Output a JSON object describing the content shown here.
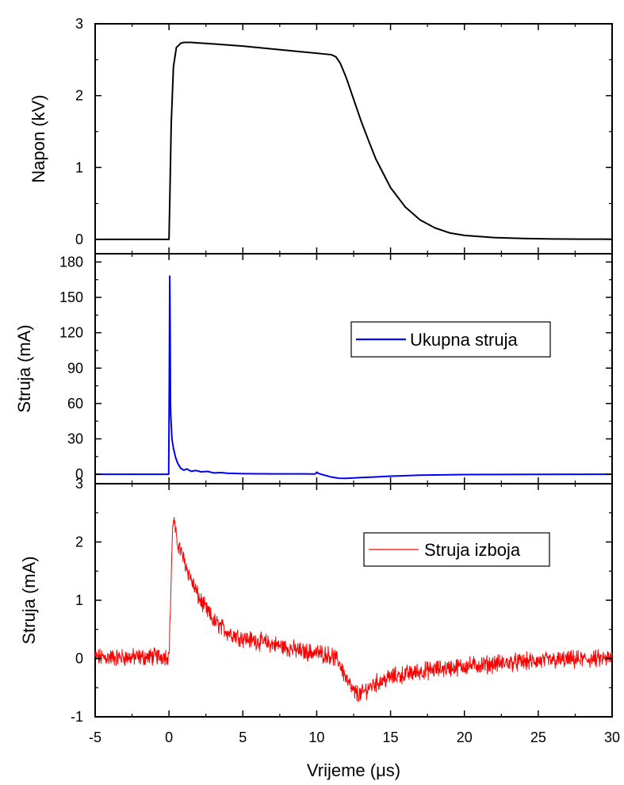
{
  "chart_data": [
    {
      "type": "line",
      "panel": "top",
      "ylabel": "Napon (kV)",
      "xlim": [
        -5,
        30
      ],
      "ylim": [
        -0.2,
        3
      ],
      "yticks": [
        "0",
        "1",
        "2",
        "3"
      ],
      "ytick_values": [
        0,
        1,
        2,
        3
      ],
      "grid": false,
      "series": [
        {
          "color": "#000000",
          "x": [
            -5,
            0,
            0.05,
            0.15,
            0.3,
            0.5,
            0.8,
            1,
            1.5,
            3,
            5,
            7,
            9,
            10,
            10.5,
            11,
            11.3,
            11.6,
            12,
            12.5,
            13,
            13.5,
            14,
            15,
            16,
            17,
            18,
            19,
            20,
            22,
            24,
            26,
            28,
            30
          ],
          "y": [
            0,
            0,
            0.5,
            1.6,
            2.4,
            2.67,
            2.73,
            2.74,
            2.74,
            2.72,
            2.69,
            2.65,
            2.61,
            2.59,
            2.58,
            2.57,
            2.54,
            2.45,
            2.25,
            1.95,
            1.65,
            1.38,
            1.12,
            0.72,
            0.45,
            0.27,
            0.16,
            0.09,
            0.055,
            0.025,
            0.012,
            0.006,
            0.003,
            0.002
          ]
        }
      ]
    },
    {
      "type": "line",
      "panel": "middle",
      "ylabel": "Struja (mA)",
      "xlim": [
        -5,
        30
      ],
      "ylim": [
        -8,
        187
      ],
      "yticks": [
        "0",
        "30",
        "60",
        "90",
        "120",
        "150",
        "180"
      ],
      "ytick_values": [
        0,
        30,
        60,
        90,
        120,
        150,
        180
      ],
      "legend": {
        "position": "center-right",
        "entries": [
          "Ukupna struja"
        ]
      },
      "grid": false,
      "series": [
        {
          "name": "Ukupna struja",
          "color": "#0000ff",
          "x": [
            -5,
            -0.02,
            0.02,
            0.05,
            0.08,
            0.1,
            0.12,
            0.15,
            0.2,
            0.3,
            0.45,
            0.6,
            0.8,
            1,
            1.2,
            1.5,
            1.8,
            2.2,
            2.6,
            3,
            3.5,
            4,
            5,
            7,
            9,
            9.9,
            10,
            10.1,
            10.3,
            11,
            11.5,
            12,
            13,
            14,
            15,
            17,
            20,
            25,
            30
          ],
          "y": [
            0,
            0,
            80,
            168,
            120,
            60,
            50,
            42,
            30,
            22,
            14,
            9,
            5,
            3.5,
            4.5,
            2.5,
            3.2,
            2,
            2.4,
            1.2,
            1.4,
            0.8,
            0.5,
            0.3,
            0.3,
            0.2,
            1.8,
            0.8,
            0,
            -2.4,
            -3.4,
            -3.5,
            -2.8,
            -2.3,
            -1.6,
            -0.8,
            -0.3,
            -0.1,
            0
          ]
        }
      ]
    },
    {
      "type": "line",
      "panel": "bottom",
      "ylabel": "Struja (mA)",
      "xlabel": "Vrijeme (μs)",
      "xlim": [
        -5,
        30
      ],
      "ylim": [
        -1,
        3
      ],
      "xticks": [
        "-5",
        "0",
        "5",
        "10",
        "15",
        "20",
        "25",
        "30"
      ],
      "xtick_values": [
        -5,
        0,
        5,
        10,
        15,
        20,
        25,
        30
      ],
      "yticks": [
        "-1",
        "0",
        "1",
        "2",
        "3"
      ],
      "ytick_values": [
        -1,
        0,
        1,
        2,
        3
      ],
      "legend": {
        "position": "top-right",
        "entries": [
          "Struja izboja"
        ]
      },
      "grid": false,
      "series": [
        {
          "name": "Struja izboja",
          "color": "#ff0000",
          "noise_amplitude": 0.12,
          "x": [
            -5,
            -2,
            0,
            0.1,
            0.2,
            0.3,
            0.5,
            1,
            1.5,
            2,
            3,
            4,
            5,
            7,
            9,
            10,
            11,
            11.5,
            12,
            12.5,
            13,
            13.5,
            14,
            15,
            17,
            20,
            23,
            26,
            30
          ],
          "y": [
            0.02,
            0.02,
            0.05,
            0.9,
            1.9,
            2.45,
            2.05,
            1.7,
            1.35,
            1.05,
            0.65,
            0.45,
            0.35,
            0.25,
            0.12,
            0.1,
            0.05,
            -0.05,
            -0.35,
            -0.58,
            -0.62,
            -0.5,
            -0.42,
            -0.32,
            -0.22,
            -0.13,
            -0.07,
            -0.03,
            0
          ]
        }
      ]
    }
  ]
}
